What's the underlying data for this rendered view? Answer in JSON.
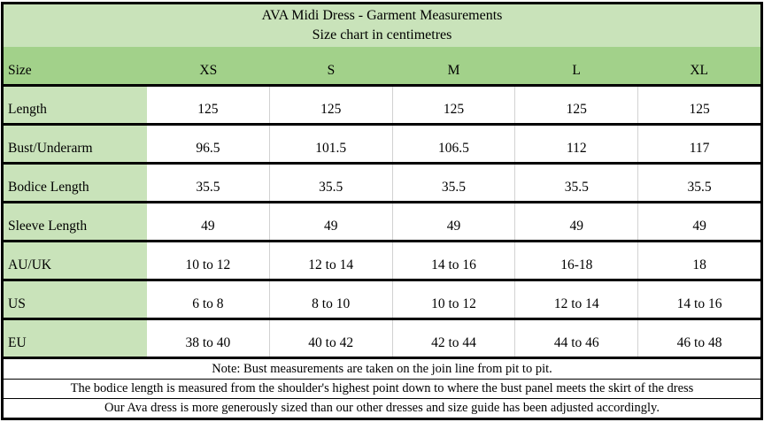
{
  "chart_data": {
    "type": "table",
    "title": "AVA Midi Dress - Garment Measurements",
    "subtitle": "Size chart in centimetres",
    "header": {
      "label": "Size",
      "columns": [
        "XS",
        "S",
        "M",
        "L",
        "XL"
      ]
    },
    "rows": [
      {
        "label": "Length",
        "values": [
          "125",
          "125",
          "125",
          "125",
          "125"
        ]
      },
      {
        "label": "Bust/Underarm",
        "values": [
          "96.5",
          "101.5",
          "106.5",
          "112",
          "117"
        ]
      },
      {
        "label": "Bodice Length",
        "values": [
          "35.5",
          "35.5",
          "35.5",
          "35.5",
          "35.5"
        ]
      },
      {
        "label": "Sleeve Length",
        "values": [
          "49",
          "49",
          "49",
          "49",
          "49"
        ]
      },
      {
        "label": "AU/UK",
        "values": [
          "10 to 12",
          "12 to 14",
          "14 to 16",
          "16-18",
          "18"
        ]
      },
      {
        "label": "US",
        "values": [
          "6 to 8",
          "8 to 10",
          "10 to 12",
          "12 to 14",
          "14 to 16"
        ]
      },
      {
        "label": "EU",
        "values": [
          "38 to 40",
          "40 to 42",
          "42 to 44",
          "44 to 46",
          "46 to 48"
        ]
      }
    ],
    "notes": [
      "Note: Bust measurements are taken on the join line from pit to pit.",
      "The bodice length is measured from the shoulder's highest point down to where the bust panel meets the skirt of the dress",
      "Our Ava dress is more generously sized than our other dresses and size guide has been adjusted accordingly."
    ],
    "layout": {
      "grid": "on",
      "legend_position": "none"
    }
  },
  "theme": {
    "title_bg": "#c9e3ba",
    "header_bg": "#a2d18a",
    "label_bg": "#c9e3ba",
    "cell_bg": "#ffffff",
    "grid_line": "#d2d2d2",
    "border": "#000000",
    "text": "#000000"
  }
}
